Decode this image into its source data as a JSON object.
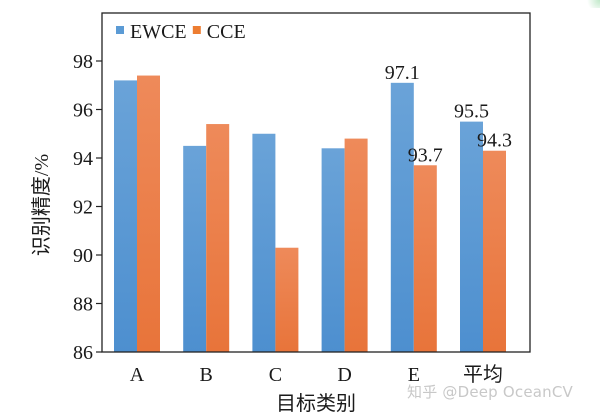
{
  "chart_data": {
    "type": "bar",
    "title": "",
    "xlabel": "目标类别",
    "ylabel": "识别精度/%",
    "categories": [
      "A",
      "B",
      "C",
      "D",
      "E",
      "平均"
    ],
    "series": [
      {
        "name": "EWCE",
        "color": "#5b9bd5",
        "values": [
          97.2,
          94.5,
          95.0,
          94.4,
          97.1,
          95.5
        ]
      },
      {
        "name": "CCE",
        "color": "#ed7d31",
        "values": [
          97.4,
          95.4,
          90.3,
          94.8,
          93.7,
          94.3
        ]
      }
    ],
    "ylim": [
      86,
      100
    ],
    "yticks": [
      86,
      88,
      90,
      92,
      94,
      96,
      98
    ],
    "data_labels": [
      {
        "category": "E",
        "series": "EWCE",
        "text": "97.1"
      },
      {
        "category": "E",
        "series": "CCE",
        "text": "93.7"
      },
      {
        "category": "平均",
        "series": "EWCE",
        "text": "95.5"
      },
      {
        "category": "平均",
        "series": "CCE",
        "text": "94.3"
      }
    ],
    "legend": {
      "position": "top-left-inside",
      "entries": [
        "EWCE",
        "CCE"
      ]
    },
    "grid": false
  },
  "watermark": "知乎 @Deep OceanCV"
}
